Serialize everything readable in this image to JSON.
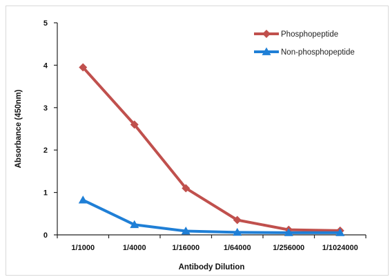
{
  "chart_data": {
    "type": "line",
    "title": "",
    "xlabel": "Antibody Dilution",
    "ylabel": "Absorbance (450nm)",
    "categories": [
      "1/1000",
      "1/4000",
      "1/16000",
      "1/64000",
      "1/256000",
      "1/1024000"
    ],
    "ylim": [
      0,
      5
    ],
    "yticks": [
      0,
      1,
      2,
      3,
      4,
      5
    ],
    "grid": false,
    "legend_position": "top-right",
    "series": [
      {
        "name": "Phosphopeptide",
        "values": [
          3.95,
          2.6,
          1.1,
          0.35,
          0.12,
          0.1
        ],
        "color": "#c0504d",
        "marker": "diamond"
      },
      {
        "name": "Non-phosphopeptide",
        "values": [
          0.82,
          0.24,
          0.09,
          0.06,
          0.05,
          0.05
        ],
        "color": "#1f7fd6",
        "marker": "triangle"
      }
    ]
  }
}
